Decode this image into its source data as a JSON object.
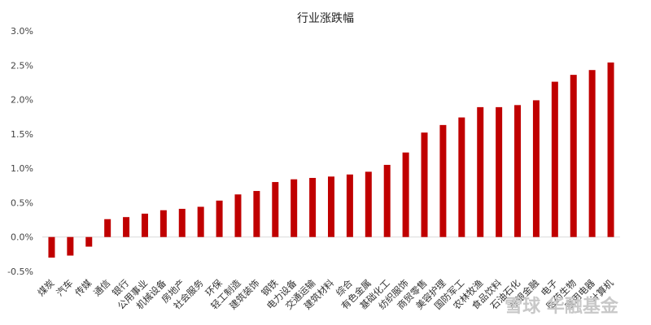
{
  "chart_data": {
    "type": "bar",
    "title": "行业涨跌幅",
    "xlabel": "",
    "ylabel": "",
    "ylim": [
      -0.5,
      3.0
    ],
    "y_ticks": [
      "3.0%",
      "2.5%",
      "2.0%",
      "1.5%",
      "1.0%",
      "0.5%",
      "0.0%",
      "-0.5%"
    ],
    "grid": false,
    "legend": "none",
    "bar_color": "#c00000",
    "categories": [
      "煤炭",
      "汽车",
      "传媒",
      "通信",
      "银行",
      "公用事业",
      "机械设备",
      "房地产",
      "社会服务",
      "环保",
      "轻工制造",
      "建筑装饰",
      "钢铁",
      "电力设备",
      "交通运输",
      "建筑材料",
      "综合",
      "有色金属",
      "基础化工",
      "纺织服饰",
      "商贸零售",
      "美容护理",
      "国防军工",
      "农林牧渔",
      "食品饮料",
      "石油石化",
      "非银金融",
      "电子",
      "医药生物",
      "家用电器",
      "计算机"
    ],
    "values": [
      -0.3,
      -0.27,
      -0.14,
      0.26,
      0.29,
      0.34,
      0.39,
      0.41,
      0.44,
      0.53,
      0.62,
      0.67,
      0.8,
      0.84,
      0.86,
      0.88,
      0.91,
      0.95,
      1.05,
      1.23,
      1.52,
      1.63,
      1.74,
      1.89,
      1.89,
      1.92,
      1.99,
      2.26,
      2.36,
      2.43,
      2.54
    ],
    "watermark": "雪球 华融基金"
  }
}
